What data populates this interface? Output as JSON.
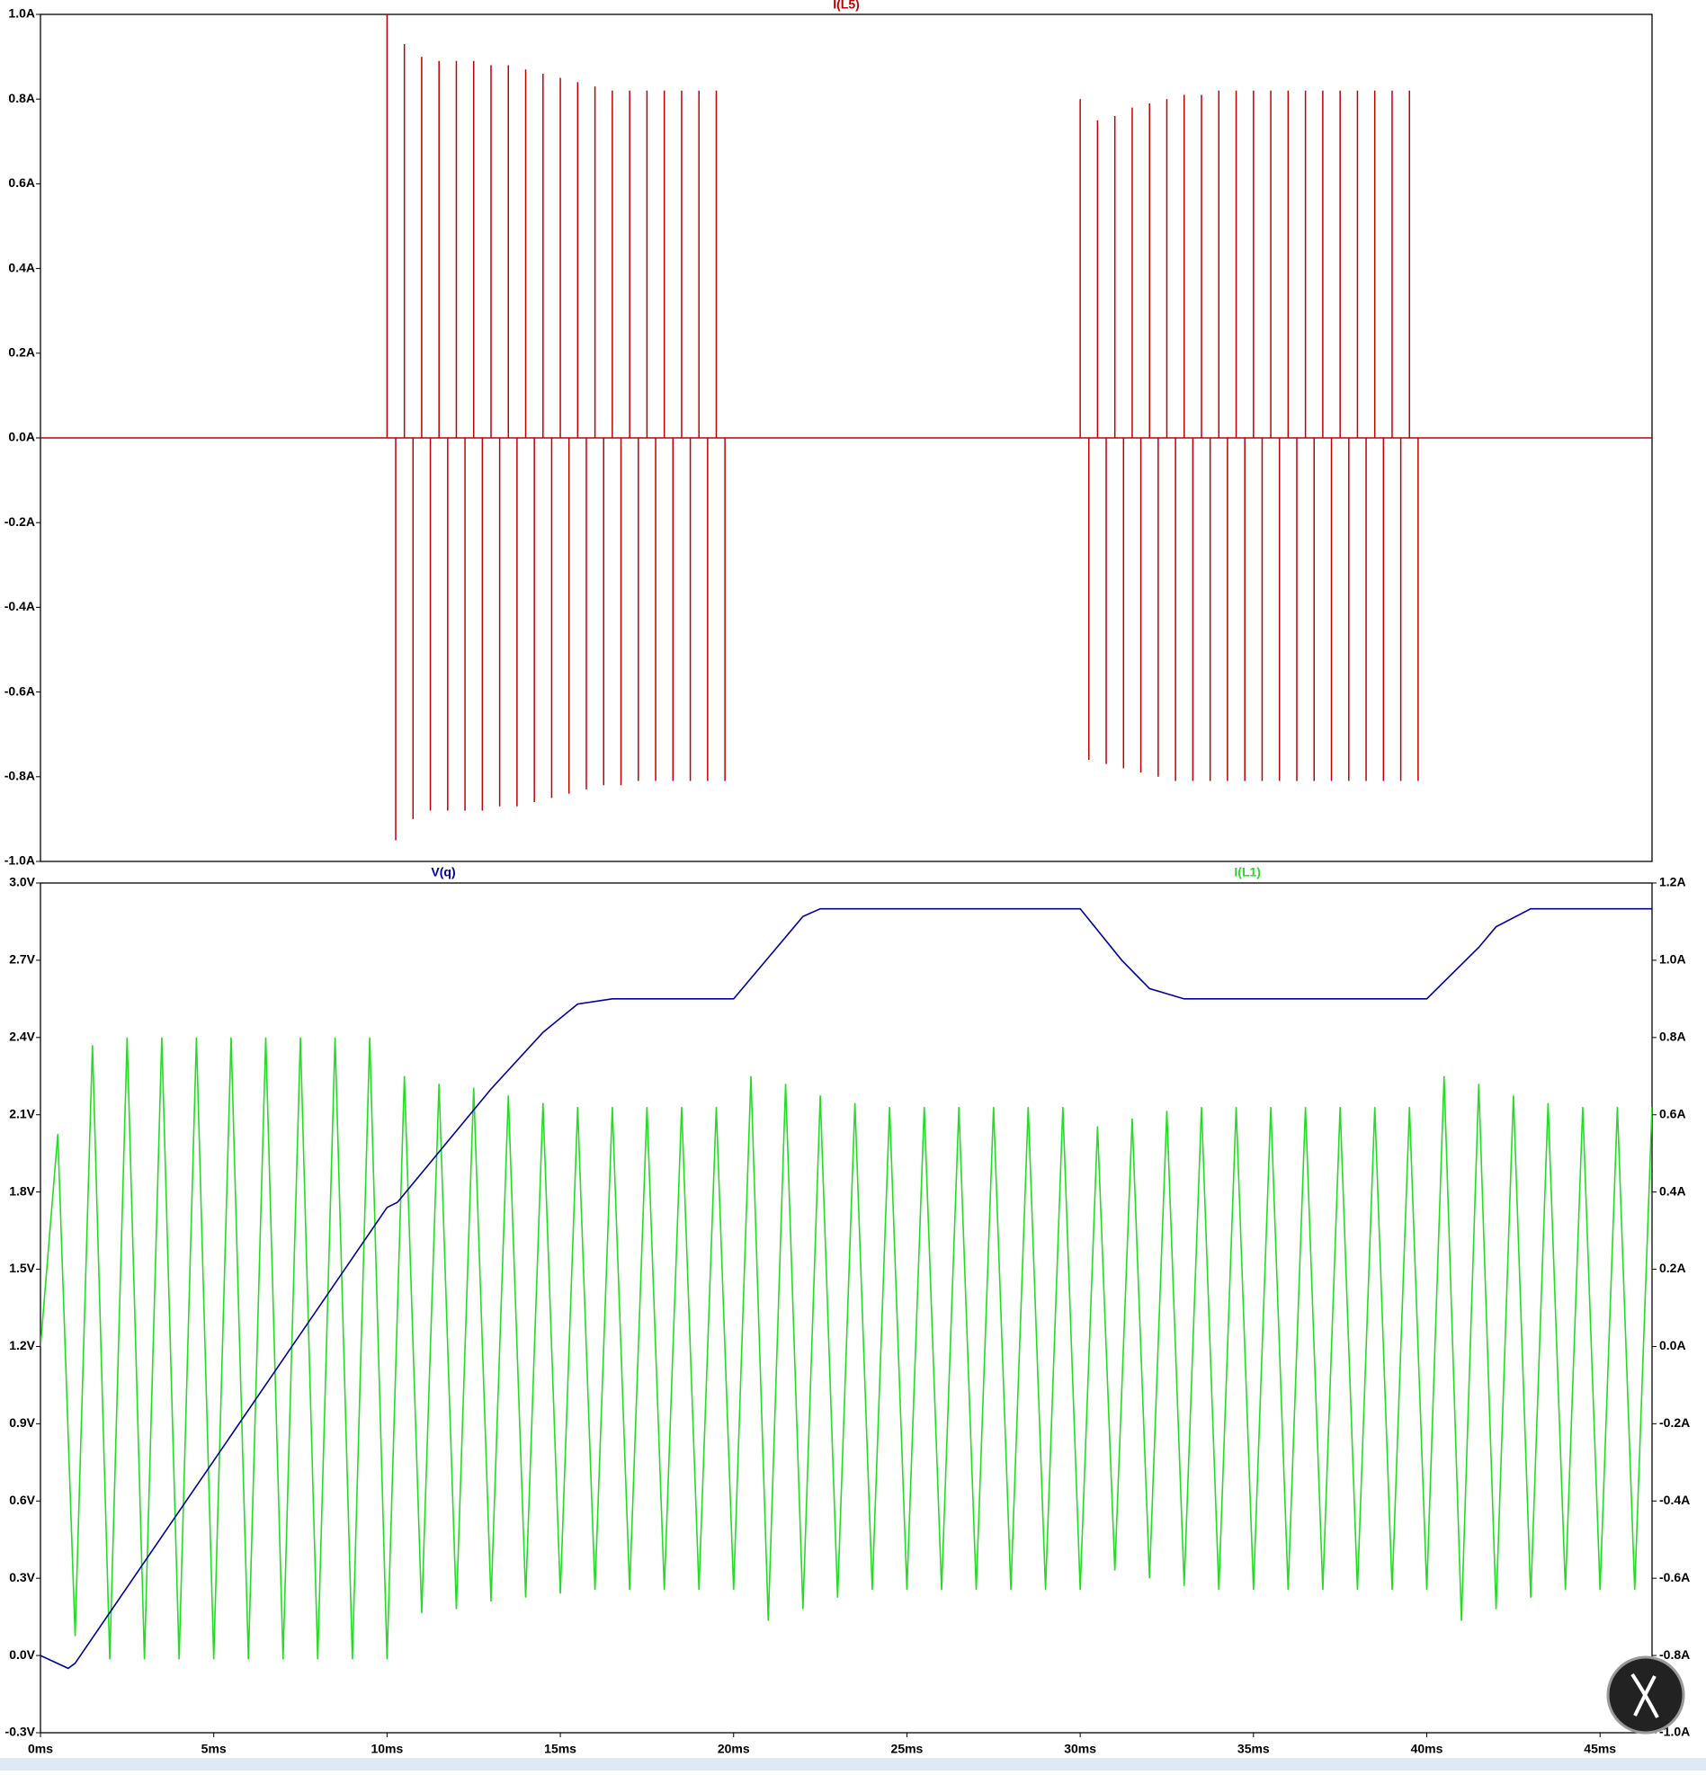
{
  "chart_data": [
    {
      "type": "stem",
      "title": "I(L5)",
      "color": "#c00000",
      "xlim": [
        0,
        46.5
      ],
      "ylim": [
        -1.0,
        1.0
      ],
      "yticks": [
        {
          "value": 1.0,
          "label": "1.0A"
        },
        {
          "value": 0.8,
          "label": "0.8A"
        },
        {
          "value": 0.6,
          "label": "0.6A"
        },
        {
          "value": 0.4,
          "label": "0.4A"
        },
        {
          "value": 0.2,
          "label": "0.2A"
        },
        {
          "value": 0.0,
          "label": "0.0A"
        },
        {
          "value": -0.2,
          "label": "-0.2A"
        },
        {
          "value": -0.4,
          "label": "-0.4A"
        },
        {
          "value": -0.6,
          "label": "-0.6A"
        },
        {
          "value": -0.8,
          "label": "-0.8A"
        },
        {
          "value": -1.0,
          "label": "-1.0A"
        }
      ],
      "x": [
        10,
        10.25,
        10.5,
        10.75,
        11,
        11.25,
        11.5,
        11.75,
        12,
        12.25,
        12.5,
        12.75,
        13,
        13.25,
        13.5,
        13.75,
        14,
        14.25,
        14.5,
        14.75,
        15,
        15.25,
        15.5,
        15.75,
        16,
        16.25,
        16.5,
        16.75,
        17,
        17.25,
        17.5,
        17.75,
        18,
        18.25,
        18.5,
        18.75,
        19,
        19.25,
        19.5,
        19.75,
        30,
        30.25,
        30.5,
        30.75,
        31,
        31.25,
        31.5,
        31.75,
        32,
        32.25,
        32.5,
        32.75,
        33,
        33.25,
        33.5,
        33.75,
        34,
        34.25,
        34.5,
        34.75,
        35,
        35.25,
        35.5,
        35.75,
        36,
        36.25,
        36.5,
        36.75,
        37,
        37.25,
        37.5,
        37.75,
        38,
        38.25,
        38.5,
        38.75,
        39,
        39.25,
        39.5,
        39.75
      ],
      "values": [
        1.0,
        -0.95,
        0.93,
        -0.9,
        0.9,
        -0.88,
        0.89,
        -0.88,
        0.89,
        -0.88,
        0.89,
        -0.88,
        0.88,
        -0.87,
        0.88,
        -0.87,
        0.87,
        -0.86,
        0.86,
        -0.85,
        0.85,
        -0.84,
        0.84,
        -0.83,
        0.83,
        -0.82,
        0.82,
        -0.82,
        0.82,
        -0.81,
        0.82,
        -0.81,
        0.82,
        -0.81,
        0.82,
        -0.81,
        0.82,
        -0.81,
        0.82,
        -0.81,
        0.8,
        -0.76,
        0.75,
        -0.77,
        0.76,
        -0.78,
        0.78,
        -0.79,
        0.79,
        -0.8,
        0.8,
        -0.81,
        0.81,
        -0.81,
        0.81,
        -0.81,
        0.82,
        -0.81,
        0.82,
        -0.81,
        0.82,
        -0.81,
        0.82,
        -0.81,
        0.82,
        -0.81,
        0.82,
        -0.81,
        0.82,
        -0.81,
        0.82,
        -0.81,
        0.82,
        -0.81,
        0.82,
        -0.81,
        0.82,
        -0.81,
        0.82,
        -0.81
      ]
    },
    {
      "type": "line",
      "xlim": [
        0,
        46.5
      ],
      "xticks": [
        {
          "value": 0,
          "label": "0ms"
        },
        {
          "value": 5,
          "label": "5ms"
        },
        {
          "value": 10,
          "label": "10ms"
        },
        {
          "value": 15,
          "label": "15ms"
        },
        {
          "value": 20,
          "label": "20ms"
        },
        {
          "value": 25,
          "label": "25ms"
        },
        {
          "value": 30,
          "label": "30ms"
        },
        {
          "value": 35,
          "label": "35ms"
        },
        {
          "value": 40,
          "label": "40ms"
        },
        {
          "value": 45,
          "label": "45ms"
        }
      ],
      "ylim": [
        -0.3,
        3.0
      ],
      "yticks": [
        {
          "value": 3.0,
          "label": "3.0V"
        },
        {
          "value": 2.7,
          "label": "2.7V"
        },
        {
          "value": 2.4,
          "label": "2.4V"
        },
        {
          "value": 2.1,
          "label": "2.1V"
        },
        {
          "value": 1.8,
          "label": "1.8V"
        },
        {
          "value": 1.5,
          "label": "1.5V"
        },
        {
          "value": 1.2,
          "label": "1.2V"
        },
        {
          "value": 0.9,
          "label": "0.9V"
        },
        {
          "value": 0.6,
          "label": "0.6V"
        },
        {
          "value": 0.3,
          "label": "0.3V"
        },
        {
          "value": 0.0,
          "label": "0.0V"
        },
        {
          "value": -0.3,
          "label": "-0.3V"
        }
      ],
      "y2lim": [
        -1.0,
        1.2
      ],
      "y2ticks": [
        {
          "value": 1.2,
          "label": "1.2A"
        },
        {
          "value": 1.0,
          "label": "1.0A"
        },
        {
          "value": 0.8,
          "label": "0.8A"
        },
        {
          "value": 0.6,
          "label": "0.6A"
        },
        {
          "value": 0.4,
          "label": "0.4A"
        },
        {
          "value": 0.2,
          "label": "0.2A"
        },
        {
          "value": 0.0,
          "label": "0.0A"
        },
        {
          "value": -0.2,
          "label": "-0.2A"
        },
        {
          "value": -0.4,
          "label": "-0.4A"
        },
        {
          "value": -0.6,
          "label": "-0.6A"
        },
        {
          "value": -0.8,
          "label": "-0.8A"
        },
        {
          "value": -1.0,
          "label": "-1.0A"
        }
      ],
      "series": [
        {
          "name": "I(L1)",
          "color": "#22dd22",
          "axis": "y2",
          "x": [
            0,
            0.5,
            1,
            1.5,
            2,
            2.5,
            3,
            3.5,
            4,
            4.5,
            5,
            5.5,
            6,
            6.5,
            7,
            7.5,
            8,
            8.5,
            9,
            9.5,
            10,
            10.5,
            11,
            11.5,
            12,
            12.5,
            13,
            13.5,
            14,
            14.5,
            15,
            15.5,
            16,
            16.5,
            17,
            17.5,
            18,
            18.5,
            19,
            19.5,
            20,
            20.5,
            21,
            21.5,
            22,
            22.5,
            23,
            23.5,
            24,
            24.5,
            25,
            25.5,
            26,
            26.5,
            27,
            27.5,
            28,
            28.5,
            29,
            29.5,
            30,
            30.5,
            31,
            31.5,
            32,
            32.5,
            33,
            33.5,
            34,
            34.5,
            35,
            35.5,
            36,
            36.5,
            37,
            37.5,
            38,
            38.5,
            39,
            39.5,
            40,
            40.5,
            41,
            41.5,
            42,
            42.5,
            43,
            43.5,
            44,
            44.5,
            45,
            45.5,
            46,
            46.5
          ],
          "values": [
            0,
            0.55,
            -0.75,
            0.78,
            -0.81,
            0.8,
            -0.81,
            0.8,
            -0.81,
            0.8,
            -0.81,
            0.8,
            -0.81,
            0.8,
            -0.81,
            0.8,
            -0.81,
            0.8,
            -0.81,
            0.8,
            -0.81,
            0.7,
            -0.69,
            0.68,
            -0.68,
            0.67,
            -0.66,
            0.65,
            -0.65,
            0.63,
            -0.64,
            0.62,
            -0.63,
            0.62,
            -0.63,
            0.62,
            -0.63,
            0.62,
            -0.63,
            0.62,
            -0.63,
            0.7,
            -0.71,
            0.68,
            -0.68,
            0.65,
            -0.65,
            0.63,
            -0.63,
            0.62,
            -0.63,
            0.62,
            -0.63,
            0.62,
            -0.63,
            0.62,
            -0.63,
            0.62,
            -0.63,
            0.62,
            -0.63,
            0.57,
            -0.58,
            0.59,
            -0.6,
            0.61,
            -0.62,
            0.62,
            -0.63,
            0.62,
            -0.63,
            0.62,
            -0.63,
            0.62,
            -0.63,
            0.62,
            -0.63,
            0.62,
            -0.63,
            0.62,
            -0.63,
            0.7,
            -0.71,
            0.68,
            -0.68,
            0.65,
            -0.65,
            0.63,
            -0.63,
            0.62,
            -0.63,
            0.62,
            -0.63,
            0.62
          ]
        },
        {
          "name": "V(q)",
          "color": "#00009c",
          "x": [
            0,
            0.8,
            1.0,
            10,
            10.3,
            13,
            14.5,
            15.5,
            16.5,
            20,
            22,
            22.5,
            30,
            31.2,
            32,
            33,
            40,
            41.5,
            42,
            43,
            46.5
          ],
          "values": [
            0,
            -0.05,
            -0.03,
            1.74,
            1.76,
            2.2,
            2.42,
            2.53,
            2.55,
            2.55,
            2.87,
            2.9,
            2.9,
            2.7,
            2.59,
            2.55,
            2.55,
            2.75,
            2.83,
            2.9,
            2.9
          ]
        }
      ]
    }
  ]
}
